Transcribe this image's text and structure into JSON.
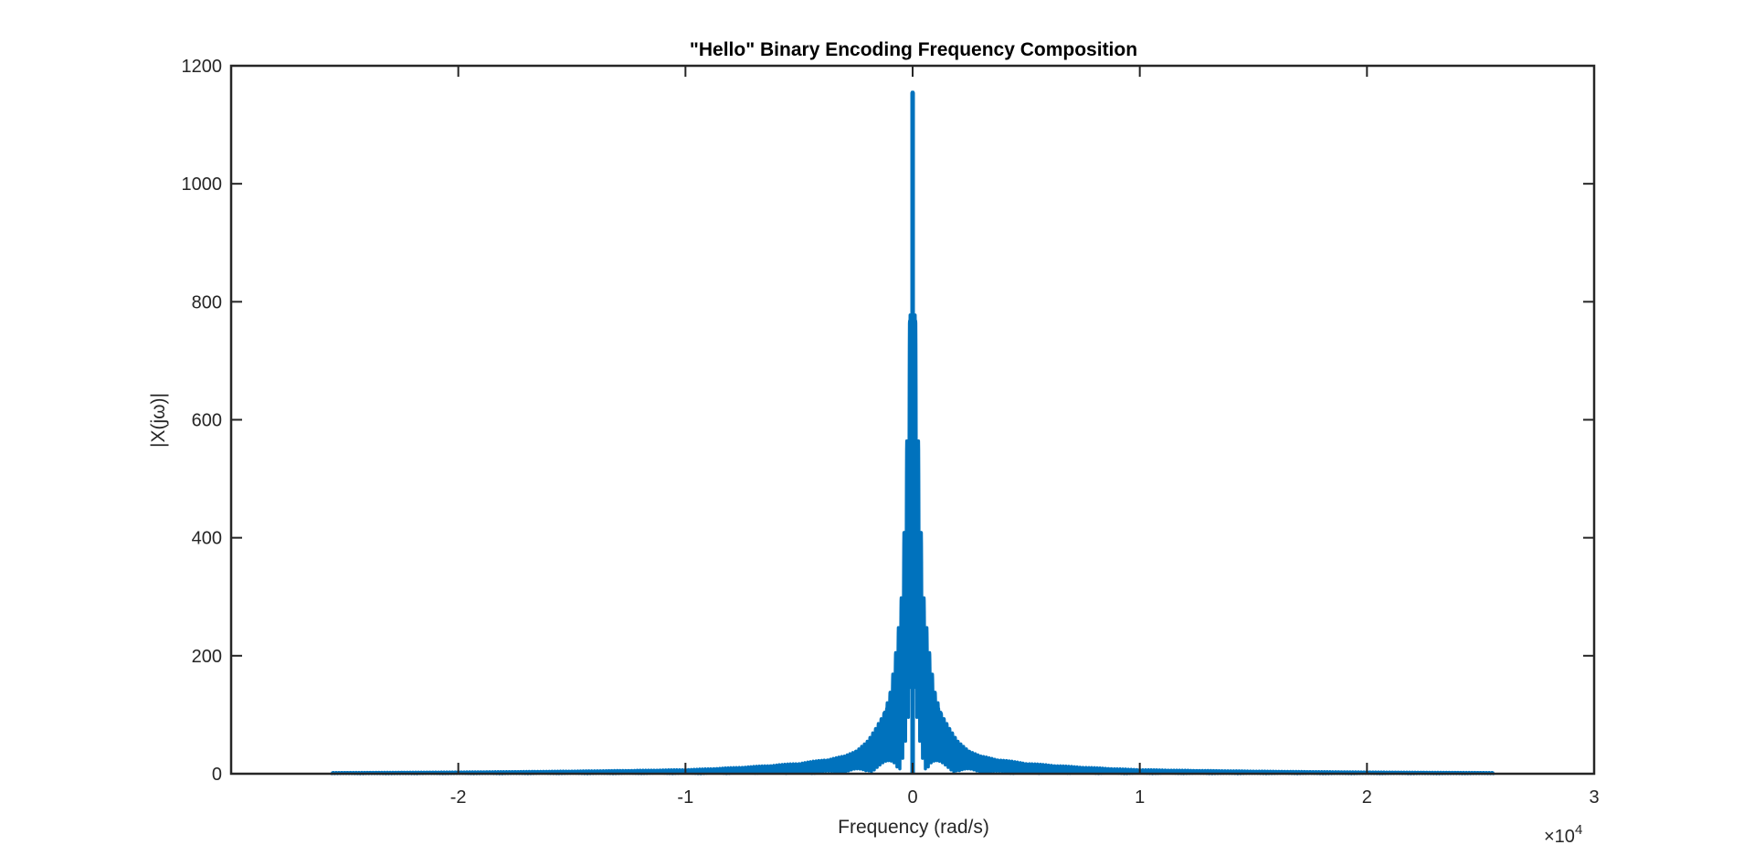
{
  "chart_data": {
    "type": "line",
    "title": "\"Hello\" Binary Encoding Frequency Composition",
    "xlabel": "Frequency (rad/s)",
    "ylabel": "|X(jω)|",
    "x_exponent_label": {
      "base": "×10",
      "exp": "4"
    },
    "xlim": [
      -3.0,
      3.0
    ],
    "ylim": [
      0,
      1200
    ],
    "x_ticks": [
      -2,
      -1,
      0,
      1,
      2,
      3
    ],
    "x_tick_labels": [
      "-2",
      "-1",
      "0",
      "1",
      "2",
      "3"
    ],
    "y_ticks": [
      0,
      200,
      400,
      600,
      800,
      1000,
      1200
    ],
    "y_tick_labels": [
      "0",
      "200",
      "400",
      "600",
      "800",
      "1000",
      "1200"
    ],
    "grid": false,
    "box": true,
    "series": [
      {
        "color": "#0072BD",
        "x_range": [
          -2.56,
          2.56
        ],
        "peak": {
          "x": 0,
          "y": 1155
        },
        "values_envelope": [
          {
            "x": -2.56,
            "y": 2
          },
          {
            "x": -2.0,
            "y": 3
          },
          {
            "x": -1.0,
            "y": 7
          },
          {
            "x": -0.5,
            "y": 18
          },
          {
            "x": -0.3,
            "y": 30
          },
          {
            "x": -0.2,
            "y": 55
          },
          {
            "x": -0.1,
            "y": 140
          },
          {
            "x": -0.05,
            "y": 300
          },
          {
            "x": 0,
            "y": 1155
          },
          {
            "x": 0.05,
            "y": 300
          },
          {
            "x": 0.1,
            "y": 140
          },
          {
            "x": 0.2,
            "y": 55
          },
          {
            "x": 0.3,
            "y": 30
          },
          {
            "x": 0.5,
            "y": 18
          },
          {
            "x": 1.0,
            "y": 7
          },
          {
            "x": 2.0,
            "y": 3
          },
          {
            "x": 2.56,
            "y": 2
          }
        ]
      }
    ]
  }
}
